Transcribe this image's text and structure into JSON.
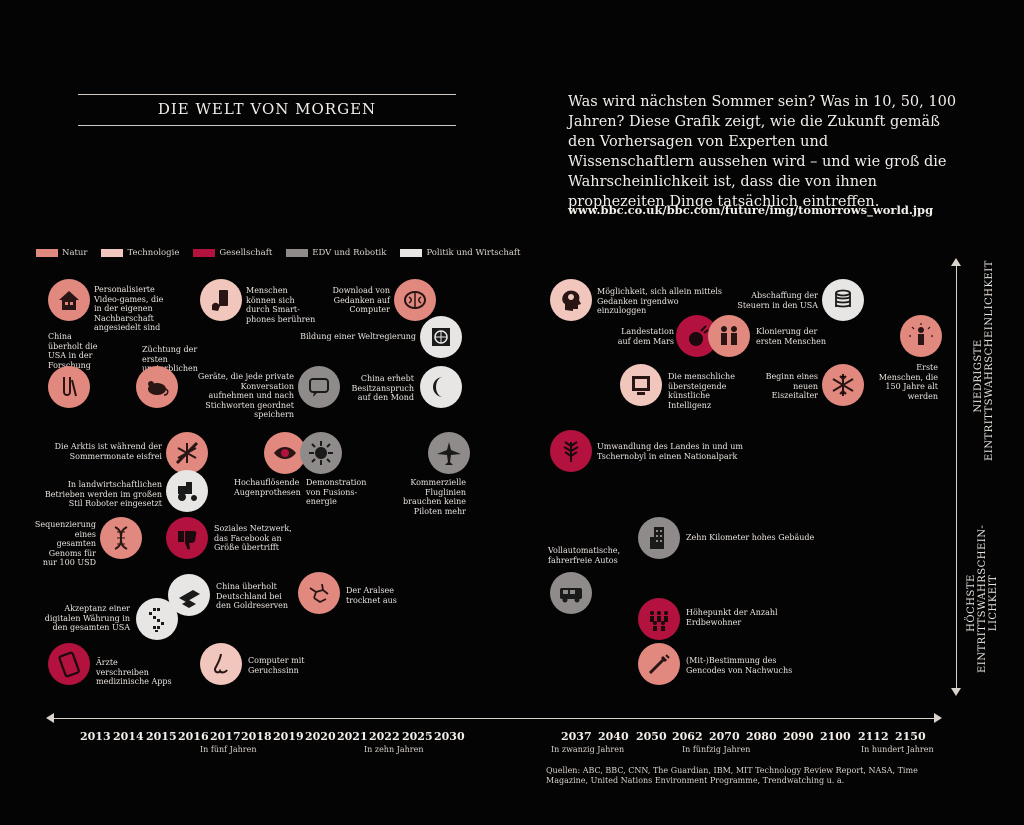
{
  "title": "DIE WELT VON MORGEN",
  "intro": "Was wird nächsten Sommer sein? Was in 10, 50, 100 Jahren? Diese Grafik zeigt, wie die Zukunft gemäß den Vorhersagen von Experten und Wissenschaftlern aussehen wird – und wie groß die Wahrscheinlichkeit ist, dass die von ihnen prophezeiten Dinge tatsächlich eintreffen.",
  "url": "www.bbc.co.uk/bbc.com/future/img/tomorrows_world.jpg",
  "legend": [
    "Natur",
    "Technologie",
    "Gesellschaft",
    "EDV und Robotik",
    "Politik und Wirtschaft"
  ],
  "colors": {
    "natur": "#e1897f",
    "technologie": "#f1c6bc",
    "gesellschaft": "#b3123e",
    "edv": "#8e8b8a",
    "politik": "#e8e6e4"
  },
  "vertical": {
    "top_line1": "NIEDRIGSTE",
    "top_line2": "EINTRITTSWAHRSCHEINLICHKEIT",
    "bottom_line1": "HÖCHSTE",
    "bottom_line2": "EINTRITTSWAHRSCHEIN-",
    "bottom_line3": "LICHKEIT"
  },
  "events": {
    "e1": "Personalisierte Video-games, die in der eigenen Nachbarschaft angesiedelt sind",
    "e2": "Menschen können sich durch Smart-phones berühren",
    "e3": "Download von Gedanken auf Computer",
    "e4": "China überholt die USA in der Forschung",
    "e5": "Züchtung der ersten unsterblichen Maus",
    "e6": "Bildung einer Weltregierung",
    "e7": "Geräte, die jede private Konversation aufnehmen und nach Stichworten geordnet speichern",
    "e8": "China erhebt Besitzanspruch auf den Mond",
    "e9": "Die Arktis ist während der Sommermonate eisfrei",
    "e10": "Hochauflösende Augenprothesen",
    "e11": "Demonstration von Fusions-energie",
    "e12": "Kommerzielle Fluglinien brauchen keine Piloten mehr",
    "e13": "In landwirtschaftlichen Betrieben werden im großen Stil Roboter eingesetzt",
    "e14": "Sequenzierung eines gesamten Genoms für nur 100 USD",
    "e15": "Soziales Netzwerk, das Facebook an Größe übertrifft",
    "e16": "China überholt Deutschland bei den Goldreserven",
    "e17": "Der Aralsee trocknet aus",
    "e18": "Akzeptanz einer digitalen Währung in den gesamten USA",
    "e19": "Ärzte verschreiben medizinische Apps",
    "e20": "Computer mit Geruchssinn",
    "e21": "Möglichkeit, sich allein mittels Gedanken irgendwo einzuloggen",
    "e22": "Abschaffung der Steuern in den USA",
    "e23": "Landestation auf dem Mars",
    "e24": "Klonierung der ersten Menschen",
    "e25": "Erste Menschen, die 150 Jahre alt werden",
    "e26": "Die menschliche übersteigende künstliche Intelligenz",
    "e27": "Beginn eines neuen Eiszeitalter",
    "e28": "Umwandlung des Landes in und um Tschernobyl in einen Nationalpark",
    "e29": "Zehn Kilometer hohes Gebäude",
    "e30": "Vollautomatische, fahrerfreie Autos",
    "e31": "Höhepunkt der Anzahl Erdbewohner",
    "e32": "(Mit-)Bestimmung des Gencodes von Nachwuchs"
  },
  "years": [
    "2013",
    "2014",
    "2015",
    "2016",
    "2017",
    "2018",
    "2019",
    "2020",
    "2021",
    "2022",
    "2025",
    "2030",
    "2037",
    "2040",
    "2050",
    "2062",
    "2070",
    "2080",
    "2090",
    "2100",
    "2112",
    "2150"
  ],
  "year_notes": [
    "In fünf Jahren",
    "In zehn Jahren",
    "In zwanzig Jahren",
    "In fünfzig Jahren",
    "In hundert Jahren"
  ],
  "sources": "Quellen: ABC, BBC, CNN, The Guardian, IBM, MIT Technology Review Report, NASA, Time Magazine, United Nations Environment Programme, Trendwatching u. a."
}
